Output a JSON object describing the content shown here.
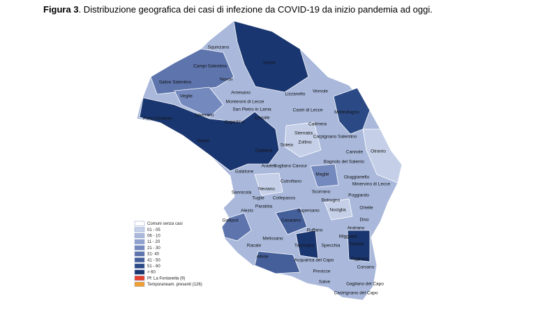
{
  "title": {
    "label": "Figura 3",
    "text": ". Distribuzione  geografica dei  casi di infezione  da  COVID-19 da inizio pandemia ad oggi."
  },
  "municipalities": [
    "Squinzano",
    "Campi Salentina",
    "Lecce",
    "Novoli",
    "Salice Salentino",
    "Veglie",
    "Arnesano",
    "Monteroni di Lecce",
    "Lizzanello",
    "Vernole",
    "Melendugno",
    "San Pietro in Lama",
    "Leverano",
    "Lequile",
    "Castri di Lecce",
    "Porto Cesareo",
    "Copertino",
    "Calimera",
    "Sternatia",
    "Carpignano Salentino",
    "Zollino",
    "Soleto",
    "Nardò",
    "Galatina",
    "Cannole",
    "Otranto",
    "Aradeo",
    "Sogliano Cavour",
    "Bagnolo del Salento",
    "Galatone",
    "Maglie",
    "Giuggianello",
    "Neviano",
    "Cutrofiano",
    "Minervino di Lecce",
    "Sannicola",
    "Scorrano",
    "Poggiardo",
    "Tuglie",
    "Collepasso",
    "Botrugno",
    "Parabita",
    "Ortelle",
    "Alezio",
    "Supersano",
    "Nociglia",
    "Diso",
    "Gallipoli",
    "Casarano",
    "Andrano",
    "Ruffano",
    "Melissano",
    "Miggiano",
    "Racale",
    "Taurisano",
    "Specchia",
    "Tricase",
    "Alliste",
    "Acquarica del Capo",
    "Tiggiano",
    "Presicce",
    "Corsano",
    "Salve",
    "Gagliano del Capo",
    "Castrignano del Capo"
  ],
  "legend": [
    {
      "label": "Comuni senza casi",
      "color": "#ffffff"
    },
    {
      "label": "01 - 05",
      "color": "#c5d0e8"
    },
    {
      "label": "06 - 10",
      "color": "#a9b8db"
    },
    {
      "label": "11 - 20",
      "color": "#8fa2cf"
    },
    {
      "label": "21 - 30",
      "color": "#7489bd"
    },
    {
      "label": "31- 40",
      "color": "#5d74ad"
    },
    {
      "label": "41 - 50",
      "color": "#445f9a"
    },
    {
      "label": "51 - 60",
      "color": "#2b4a85"
    },
    {
      "label": "> 60",
      "color": "#1a3670"
    },
    {
      "label": "Pf: La Fontanella (9)",
      "color": "#e8402a"
    },
    {
      "label": "Temporaneam. presenti (126)",
      "color": "#f0a030"
    }
  ]
}
